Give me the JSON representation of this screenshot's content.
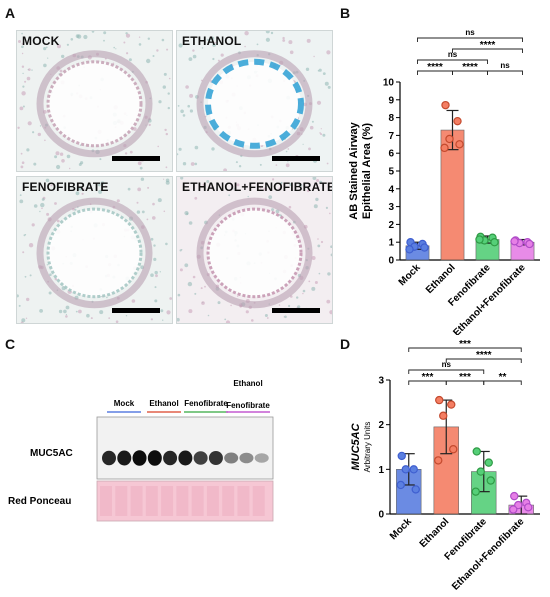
{
  "panels": {
    "a": "A",
    "b": "B",
    "c": "C",
    "d": "D"
  },
  "micrographs": [
    {
      "label": "MOCK",
      "tint": "#eef2f1",
      "stain": "#c9a7b9"
    },
    {
      "label": "ETHANOL",
      "tint": "#eef3f3",
      "stain": "#3aa6d8"
    },
    {
      "label": "FENOFIBRATE",
      "tint": "#eef2f1",
      "stain": "#a9c9c6"
    },
    {
      "label": "ETHANOL+FENOFIBRATE",
      "tint": "#f3eef1",
      "stain": "#c79ab4"
    }
  ],
  "western": {
    "groups": [
      "Mock",
      "Ethanol",
      "Fenofibrate",
      "Ethanol\nFenofibrate"
    ],
    "group_line1": [
      "Mock",
      "Ethanol",
      "Fenofibrate",
      "Ethanol"
    ],
    "group_line2": [
      "",
      "",
      "",
      "Fenofibrate"
    ],
    "group_colors": [
      "#5b7fe0",
      "#e0604a",
      "#55b65f",
      "#c45ad0"
    ],
    "row1": "MUC5AC",
    "row2": "Red Ponceau",
    "band_intensity": [
      0.85,
      0.9,
      0.95,
      0.95,
      0.85,
      0.9,
      0.75,
      0.8,
      0.5,
      0.45,
      0.35
    ]
  },
  "chart_data": [
    {
      "type": "bar",
      "categories": [
        "Mock",
        "Ethanol",
        "Fenofibrate",
        "Ethanol+Fenofibrate"
      ],
      "values": [
        0.8,
        7.3,
        1.15,
        1.0
      ],
      "errors": [
        0.2,
        1.1,
        0.2,
        0.15
      ],
      "points": [
        [
          1.0,
          0.9,
          0.75,
          0.7,
          0.6
        ],
        [
          8.7,
          7.8,
          6.8,
          6.5,
          6.3
        ],
        [
          1.3,
          1.25,
          1.1,
          1.0,
          1.15
        ],
        [
          1.1,
          1.0,
          0.95,
          0.9,
          1.05
        ]
      ],
      "colors": [
        "#5b7fe0",
        "#f47e63",
        "#55cf78",
        "#e67fe6"
      ],
      "dot_colors": [
        "#3f5fd0",
        "#c44a2e",
        "#2f9b45",
        "#b04cc8"
      ],
      "ylabel": "AB Stained Airway\nEpithelial Area (%)",
      "ylabel_line1": "AB Stained Airway",
      "ylabel_line2": "Epithelial Area (%)",
      "ylim": [
        0,
        10
      ],
      "yticks": [
        "0",
        "1",
        "2",
        "3",
        "4",
        "5",
        "6",
        "7",
        "8",
        "9",
        "10"
      ],
      "significance": [
        {
          "from": 0,
          "to": 3,
          "label": "ns",
          "level": 0
        },
        {
          "from": 1,
          "to": 3,
          "label": "****",
          "level": 1
        },
        {
          "from": 0,
          "to": 2,
          "label": "ns",
          "level": 2
        },
        {
          "from": 0,
          "to": 1,
          "label": "****",
          "level": 3
        },
        {
          "from": 1,
          "to": 2,
          "label": "****",
          "level": 3
        },
        {
          "from": 2,
          "to": 3,
          "label": "ns",
          "level": 3
        }
      ]
    },
    {
      "type": "bar",
      "categories": [
        "Mock",
        "Ethanol",
        "Fenofibrate",
        "Ethanol+Fenofibrate"
      ],
      "values": [
        1.0,
        1.95,
        0.95,
        0.2
      ],
      "errors": [
        0.35,
        0.6,
        0.45,
        0.2
      ],
      "points": [
        [
          1.3,
          1.0,
          1.0,
          0.55,
          0.65
        ],
        [
          2.55,
          2.45,
          2.2,
          1.45,
          1.2
        ],
        [
          1.4,
          1.15,
          0.95,
          0.75,
          0.5
        ],
        [
          0.4,
          0.25,
          0.2,
          0.15,
          0.1
        ]
      ],
      "colors": [
        "#5b7fe0",
        "#f47e63",
        "#55cf78",
        "#e67fe6"
      ],
      "dot_colors": [
        "#3f5fd0",
        "#c44a2e",
        "#2f9b45",
        "#b04cc8"
      ],
      "ylabel": "MUC5AC",
      "ylabel_sub": "Arbitrary Units",
      "ylim": [
        0,
        3
      ],
      "yticks": [
        "0",
        "1",
        "2",
        "3"
      ],
      "significance": [
        {
          "from": 0,
          "to": 3,
          "label": "***",
          "level": 0
        },
        {
          "from": 1,
          "to": 3,
          "label": "****",
          "level": 1
        },
        {
          "from": 0,
          "to": 2,
          "label": "ns",
          "level": 2
        },
        {
          "from": 0,
          "to": 1,
          "label": "***",
          "level": 3
        },
        {
          "from": 1,
          "to": 2,
          "label": "***",
          "level": 3
        },
        {
          "from": 2,
          "to": 3,
          "label": "**",
          "level": 3
        }
      ]
    }
  ]
}
